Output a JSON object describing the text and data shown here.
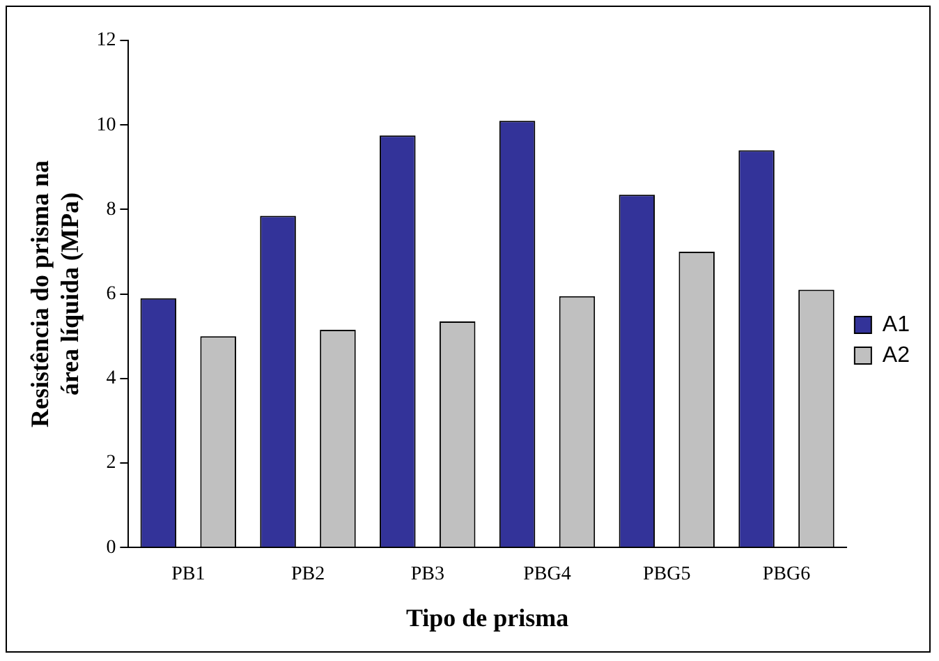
{
  "chart_data": {
    "type": "bar",
    "xlabel": "Tipo de prisma",
    "ylabel": "Resistência do prisma na\nárea líquida (MPa)",
    "categories": [
      "PB1",
      "PB2",
      "PB3",
      "PBG4",
      "PBG5",
      "PBG6"
    ],
    "series": [
      {
        "name": "A1",
        "color": "#333399",
        "values": [
          5.9,
          7.85,
          9.75,
          10.1,
          8.35,
          9.4
        ]
      },
      {
        "name": "A2",
        "color": "#c0c0c0",
        "values": [
          5.0,
          5.15,
          5.35,
          5.95,
          7.0,
          6.1
        ]
      }
    ],
    "ylim": [
      0,
      12
    ],
    "yticks": [
      0,
      2,
      4,
      6,
      8,
      10,
      12
    ],
    "grid": false,
    "legend": "right"
  }
}
